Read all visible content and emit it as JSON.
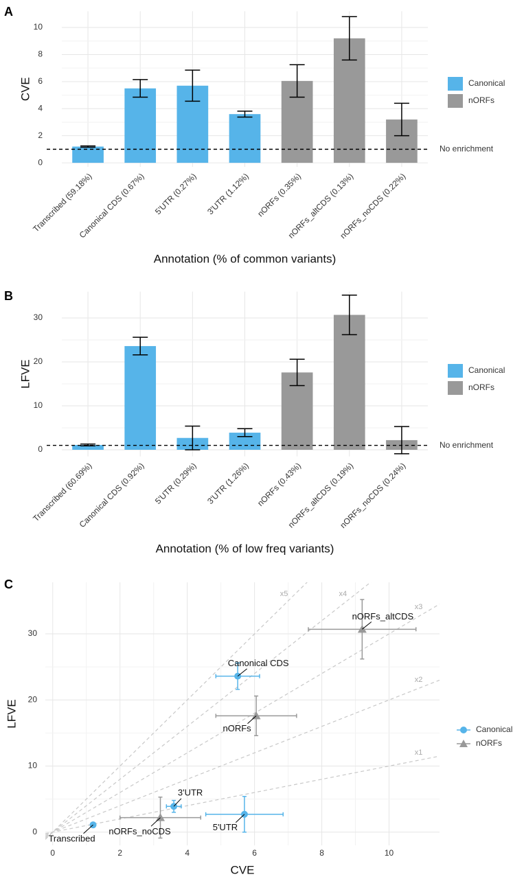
{
  "chart_data": [
    {
      "type": "bar",
      "panel": "A",
      "xlabel": "Annotation (% of common variants)",
      "ylabel": "CVE",
      "categories": [
        "Transcribed (59.18%)",
        "Canonical CDS (0.67%)",
        "5'UTR (0.27%)",
        "3'UTR (1.12%)",
        "nORFs (0.35%)",
        "nORFs_altCDS (0.13%)",
        "nORFs_noCDS (0.22%)"
      ],
      "series": [
        {
          "name": "Canonical",
          "color": "#56b4e9",
          "values": [
            1.2,
            5.5,
            5.7,
            3.6,
            null,
            null,
            null
          ],
          "errors": [
            0.05,
            0.65,
            1.15,
            0.22,
            null,
            null,
            null
          ]
        },
        {
          "name": "nORFs",
          "color": "#999999",
          "values": [
            null,
            null,
            null,
            null,
            6.05,
            9.2,
            3.2
          ],
          "errors": [
            null,
            null,
            null,
            null,
            1.2,
            1.6,
            1.2
          ]
        }
      ],
      "ylim": [
        -0.3,
        11.2
      ],
      "yticks": [
        0,
        2,
        4,
        6,
        8,
        10
      ],
      "grid": true,
      "hline": {
        "value": 1,
        "label": "No enrichment"
      },
      "legend": "right"
    },
    {
      "type": "bar",
      "panel": "B",
      "xlabel": "Annotation (% of low freq variants)",
      "ylabel": "LFVE",
      "categories": [
        "Transcribed (60.69%)",
        "Canonical CDS (0.92%)",
        "5'UTR (0.29%)",
        "3'UTR (1.26%)",
        "nORFs (0.43%)",
        "nORFs_altCDS (0.19%)",
        "nORFs_noCDS (0.24%)"
      ],
      "series": [
        {
          "name": "Canonical",
          "color": "#56b4e9",
          "values": [
            1.1,
            23.6,
            2.7,
            3.9,
            null,
            null,
            null
          ],
          "errors": [
            0.2,
            2,
            2.7,
            0.9,
            null,
            null,
            null
          ]
        },
        {
          "name": "nORFs",
          "color": "#999999",
          "values": [
            null,
            null,
            null,
            null,
            17.6,
            30.7,
            2.2
          ],
          "errors": [
            null,
            null,
            null,
            null,
            3,
            4.5,
            3.1
          ]
        }
      ],
      "ylim": [
        -1.5,
        36
      ],
      "yticks": [
        0,
        10,
        20,
        30
      ],
      "grid": true,
      "hline": {
        "value": 1,
        "label": "No enrichment"
      },
      "legend": "right"
    },
    {
      "type": "scatter",
      "panel": "C",
      "xlabel": "CVE",
      "ylabel": "LFVE",
      "series": [
        {
          "name": "Canonical",
          "color": "#56b4e9",
          "marker": "circle",
          "labels": [
            "Transcribed",
            "Canonical CDS",
            "5'UTR",
            "3'UTR"
          ],
          "x": [
            1.2,
            5.5,
            5.7,
            3.6
          ],
          "xerr": [
            0.05,
            0.65,
            1.15,
            0.22
          ],
          "values": [
            1.1,
            23.6,
            2.7,
            3.9
          ],
          "yerr": [
            0.2,
            2,
            2.7,
            0.9
          ]
        },
        {
          "name": "nORFs",
          "color": "#999999",
          "marker": "triangle",
          "labels": [
            "nORFs",
            "nORFs_altCDS",
            "nORFs_noCDS"
          ],
          "x": [
            6.05,
            9.2,
            3.2
          ],
          "xerr": [
            1.2,
            1.6,
            1.2
          ],
          "values": [
            17.6,
            30.7,
            2.2
          ],
          "yerr": [
            3,
            4.5,
            3.1
          ]
        }
      ],
      "xlim": [
        -0.22,
        11.5
      ],
      "xticks": [
        0,
        2,
        4,
        6,
        8,
        10
      ],
      "ylim": [
        -2,
        37.8
      ],
      "yticks": [
        0,
        10,
        20,
        30
      ],
      "grid": true,
      "ref_lines": [
        {
          "slope": 1,
          "label": "x1"
        },
        {
          "slope": 2,
          "label": "x2"
        },
        {
          "slope": 3,
          "label": "x3"
        },
        {
          "slope": 4,
          "label": "x4"
        },
        {
          "slope": 5,
          "label": "x5"
        }
      ],
      "legend": "right"
    }
  ]
}
